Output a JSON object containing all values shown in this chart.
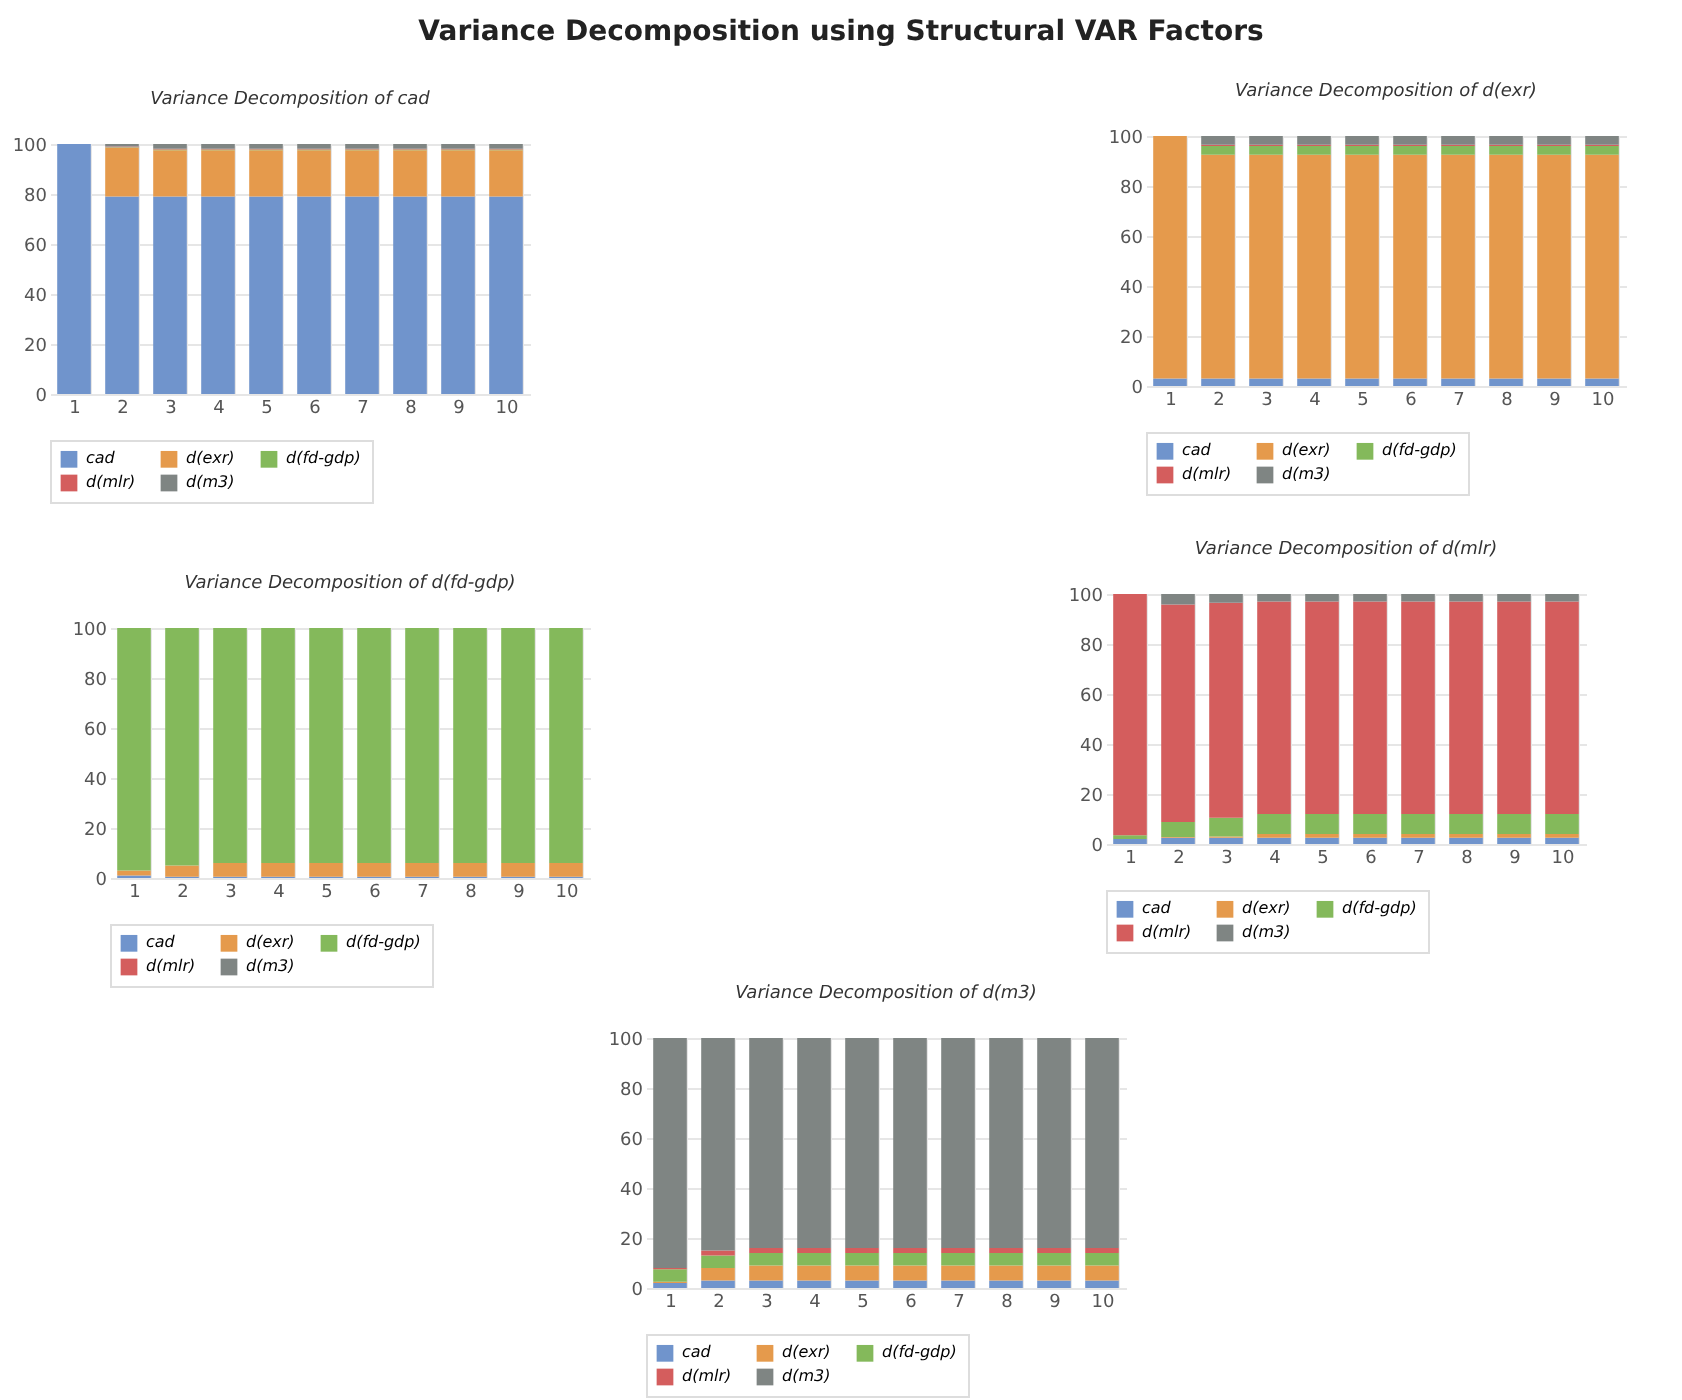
{
  "chart_data": [
    {
      "type": "other",
      "title": "Variance Decomposition using Structural VAR Factors"
    },
    {
      "type": "bar",
      "title": "Variance Decomposition of cad",
      "categories": [
        "1",
        "2",
        "3",
        "4",
        "5",
        "6",
        "7",
        "8",
        "9",
        "10"
      ],
      "stacked": true,
      "grid": true,
      "legend": "bottom",
      "ylim": [
        0,
        100
      ],
      "yticks": [
        0,
        20,
        40,
        60,
        80,
        100
      ],
      "series": [
        {
          "name": "cad",
          "color": "#7094cc",
          "values": [
            100,
            79,
            79,
            79,
            79,
            79,
            79,
            79,
            79,
            79
          ]
        },
        {
          "name": "d(exr)",
          "color": "#e59a4c",
          "values": [
            0,
            19.5,
            18.5,
            18.5,
            18.5,
            18.5,
            18.5,
            18.5,
            18.5,
            18.5
          ]
        },
        {
          "name": "d(fd-gdp)",
          "color": "#84b95b",
          "values": [
            0,
            0.2,
            0.3,
            0.3,
            0.3,
            0.3,
            0.3,
            0.3,
            0.3,
            0.3
          ]
        },
        {
          "name": "d(mlr)",
          "color": "#d45d5d",
          "values": [
            0,
            0.3,
            0.3,
            0.3,
            0.3,
            0.3,
            0.3,
            0.3,
            0.3,
            0.3
          ]
        },
        {
          "name": "d(m3)",
          "color": "#7f8583",
          "values": [
            0,
            1,
            1.9,
            1.9,
            1.9,
            1.9,
            1.9,
            1.9,
            1.9,
            1.9
          ]
        }
      ]
    },
    {
      "type": "bar",
      "title": "Variance Decomposition of d(exr)",
      "categories": [
        "1",
        "2",
        "3",
        "4",
        "5",
        "6",
        "7",
        "8",
        "9",
        "10"
      ],
      "stacked": true,
      "grid": true,
      "legend": "bottom",
      "ylim": [
        0,
        100
      ],
      "yticks": [
        0,
        20,
        40,
        60,
        80,
        100
      ],
      "series": [
        {
          "name": "cad",
          "color": "#7094cc",
          "values": [
            3,
            3,
            3,
            3,
            3,
            3,
            3,
            3,
            3,
            3
          ]
        },
        {
          "name": "d(exr)",
          "color": "#e59a4c",
          "values": [
            97,
            89.5,
            89.5,
            89.5,
            89.5,
            89.5,
            89.5,
            89.5,
            89.5,
            89.5
          ]
        },
        {
          "name": "d(fd-gdp)",
          "color": "#84b95b",
          "values": [
            0,
            3.5,
            3.5,
            3.5,
            3.5,
            3.5,
            3.5,
            3.5,
            3.5,
            3.5
          ]
        },
        {
          "name": "d(mlr)",
          "color": "#d45d5d",
          "values": [
            0,
            0.5,
            0.5,
            0.5,
            0.5,
            0.5,
            0.5,
            0.5,
            0.5,
            0.5
          ]
        },
        {
          "name": "d(m3)",
          "color": "#7f8583",
          "values": [
            0,
            3.5,
            3.5,
            3.5,
            3.5,
            3.5,
            3.5,
            3.5,
            3.5,
            3.5
          ]
        }
      ]
    },
    {
      "type": "bar",
      "title": "Variance Decomposition of d(fd-gdp)",
      "categories": [
        "1",
        "2",
        "3",
        "4",
        "5",
        "6",
        "7",
        "8",
        "9",
        "10"
      ],
      "stacked": true,
      "grid": true,
      "legend": "bottom",
      "ylim": [
        0,
        100
      ],
      "yticks": [
        0,
        20,
        40,
        60,
        80,
        100
      ],
      "series": [
        {
          "name": "cad",
          "color": "#7094cc",
          "values": [
            1,
            0.5,
            0.5,
            0.5,
            0.5,
            0.5,
            0.5,
            0.5,
            0.5,
            0.5
          ]
        },
        {
          "name": "d(exr)",
          "color": "#e59a4c",
          "values": [
            2,
            4.5,
            5.5,
            5.5,
            5.5,
            5.5,
            5.5,
            5.5,
            5.5,
            5.5
          ]
        },
        {
          "name": "d(fd-gdp)",
          "color": "#84b95b",
          "values": [
            97,
            95,
            94,
            94,
            94,
            94,
            94,
            94,
            94,
            94
          ]
        },
        {
          "name": "d(mlr)",
          "color": "#d45d5d",
          "values": [
            0,
            0,
            0,
            0,
            0,
            0,
            0,
            0,
            0,
            0
          ]
        },
        {
          "name": "d(m3)",
          "color": "#7f8583",
          "values": [
            0,
            0,
            0,
            0,
            0,
            0,
            0,
            0,
            0,
            0
          ]
        }
      ]
    },
    {
      "type": "bar",
      "title": "Variance Decomposition of d(mlr)",
      "categories": [
        "1",
        "2",
        "3",
        "4",
        "5",
        "6",
        "7",
        "8",
        "9",
        "10"
      ],
      "stacked": true,
      "grid": true,
      "legend": "bottom",
      "ylim": [
        0,
        100
      ],
      "yticks": [
        0,
        20,
        40,
        60,
        80,
        100
      ],
      "series": [
        {
          "name": "cad",
          "color": "#7094cc",
          "values": [
            2,
            2.5,
            2.5,
            2.5,
            2.5,
            2.5,
            2.5,
            2.5,
            2.5,
            2.5
          ]
        },
        {
          "name": "d(exr)",
          "color": "#e59a4c",
          "values": [
            0,
            0.3,
            0.5,
            1.5,
            1.5,
            1.5,
            1.5,
            1.5,
            1.5,
            1.5
          ]
        },
        {
          "name": "d(fd-gdp)",
          "color": "#84b95b",
          "values": [
            1.5,
            6,
            7.5,
            8,
            8,
            8,
            8,
            8,
            8,
            8
          ]
        },
        {
          "name": "d(mlr)",
          "color": "#d45d5d",
          "values": [
            96.5,
            87,
            86,
            85,
            85,
            85,
            85,
            85,
            85,
            85
          ]
        },
        {
          "name": "d(m3)",
          "color": "#7f8583",
          "values": [
            0,
            4.2,
            3.5,
            3,
            3,
            3,
            3,
            3,
            3,
            3
          ]
        }
      ]
    },
    {
      "type": "bar",
      "title": "Variance Decomposition of d(m3)",
      "categories": [
        "1",
        "2",
        "3",
        "4",
        "5",
        "6",
        "7",
        "8",
        "9",
        "10"
      ],
      "stacked": true,
      "grid": true,
      "legend": "bottom",
      "ylim": [
        0,
        100
      ],
      "yticks": [
        0,
        20,
        40,
        60,
        80,
        100
      ],
      "series": [
        {
          "name": "cad",
          "color": "#7094cc",
          "values": [
            2,
            3,
            3,
            3,
            3,
            3,
            3,
            3,
            3,
            3
          ]
        },
        {
          "name": "d(exr)",
          "color": "#e59a4c",
          "values": [
            0.5,
            5,
            6,
            6,
            6,
            6,
            6,
            6,
            6,
            6
          ]
        },
        {
          "name": "d(fd-gdp)",
          "color": "#84b95b",
          "values": [
            5,
            5,
            5,
            5,
            5,
            5,
            5,
            5,
            5,
            5
          ]
        },
        {
          "name": "d(mlr)",
          "color": "#d45d5d",
          "values": [
            0.5,
            2,
            2,
            2,
            2,
            2,
            2,
            2,
            2,
            2
          ]
        },
        {
          "name": "d(m3)",
          "color": "#7f8583",
          "values": [
            92,
            85,
            84,
            84,
            84,
            84,
            84,
            84,
            84,
            84
          ]
        }
      ]
    }
  ]
}
